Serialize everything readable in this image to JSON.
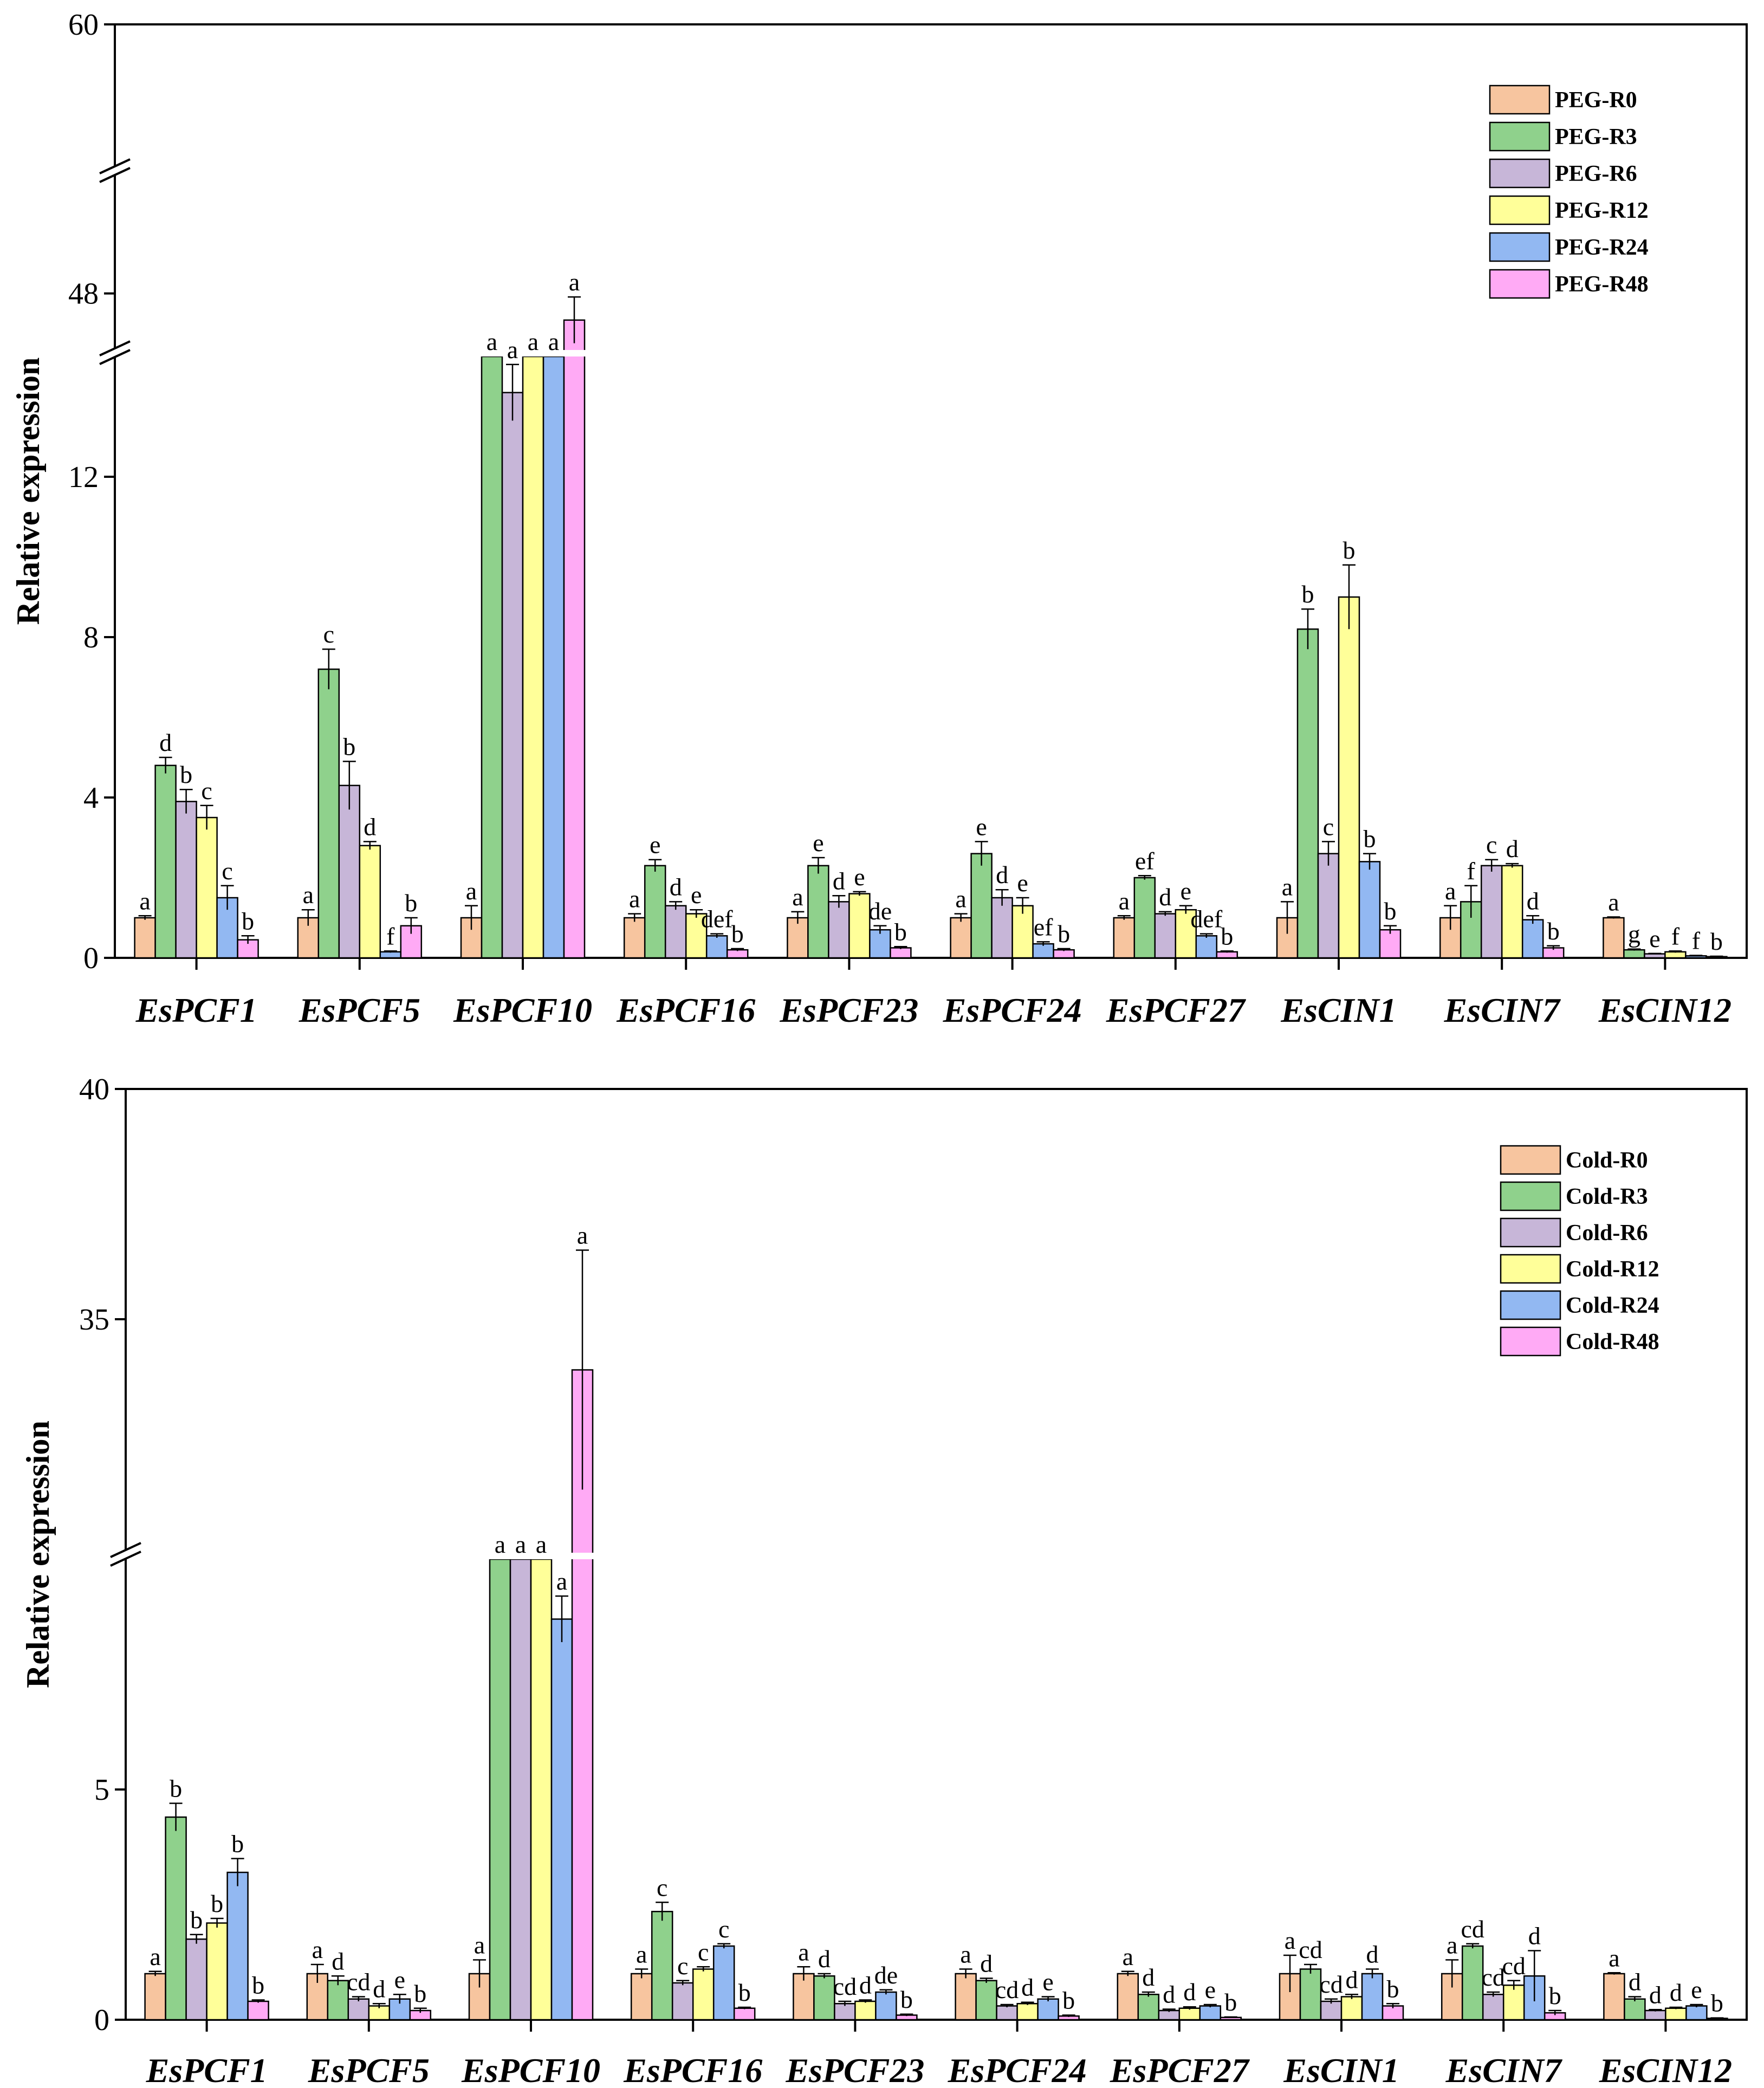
{
  "chart_data": [
    {
      "type": "bar",
      "ylabel": "Relative expression",
      "ylim": [
        0,
        60
      ],
      "axis_break": {
        "segments": [
          [
            0,
            15
          ],
          [
            45,
            50
          ],
          [
            57,
            60
          ]
        ]
      },
      "yticks": [
        0,
        4,
        8,
        12,
        48,
        60
      ],
      "categories": [
        "EsPCF1",
        "EsPCF5",
        "EsPCF10",
        "EsPCF16",
        "EsPCF23",
        "EsPCF24",
        "EsPCF27",
        "EsCIN1",
        "EsCIN7",
        "EsCIN12"
      ],
      "legend_position": "top-right",
      "series": [
        {
          "name": "PEG-R0",
          "color": "#f7c59f",
          "values": [
            1.0,
            1.0,
            1.0,
            1.0,
            1.0,
            1.0,
            1.0,
            1.0,
            1.0,
            1.0
          ],
          "errors": [
            0.05,
            0.2,
            0.3,
            0.1,
            0.15,
            0.1,
            0.05,
            0.4,
            0.3,
            0.02
          ],
          "labels": [
            "a",
            "a",
            "a",
            "a",
            "a",
            "a",
            "a",
            "a",
            "a",
            "a"
          ]
        },
        {
          "name": "PEG-R3",
          "color": "#8fd18c",
          "values": [
            4.8,
            7.2,
            15,
            2.3,
            2.3,
            2.6,
            2.0,
            8.2,
            1.4,
            0.2
          ],
          "errors": [
            0.2,
            0.5,
            0,
            0.15,
            0.2,
            0.3,
            0.05,
            0.5,
            0.4,
            0.02
          ],
          "labels": [
            "d",
            "c",
            "a",
            "e",
            "e",
            "e",
            "ef",
            "b",
            "f",
            "g"
          ]
        },
        {
          "name": "PEG-R6",
          "color": "#c7b6d8",
          "values": [
            3.9,
            4.3,
            14.1,
            1.3,
            1.4,
            1.5,
            1.1,
            2.6,
            2.3,
            0.1
          ],
          "errors": [
            0.3,
            0.6,
            0.7,
            0.1,
            0.15,
            0.2,
            0.05,
            0.3,
            0.15,
            0.01
          ],
          "labels": [
            "b",
            "b",
            "a",
            "d",
            "d",
            "d",
            "d",
            "c",
            "c",
            "e"
          ]
        },
        {
          "name": "PEG-R12",
          "color": "#ffff99",
          "values": [
            3.5,
            2.8,
            15,
            1.1,
            1.6,
            1.3,
            1.2,
            9.0,
            2.3,
            0.15
          ],
          "errors": [
            0.3,
            0.1,
            0,
            0.1,
            0.05,
            0.2,
            0.1,
            0.8,
            0.05,
            0.02
          ],
          "labels": [
            "c",
            "d",
            "a",
            "e",
            "e",
            "e",
            "e",
            "b",
            "d",
            "f"
          ]
        },
        {
          "name": "PEG-R24",
          "color": "#92b8f2",
          "values": [
            1.5,
            0.15,
            15,
            0.55,
            0.7,
            0.35,
            0.55,
            2.4,
            0.95,
            0.05
          ],
          "errors": [
            0.3,
            0.02,
            0,
            0.05,
            0.1,
            0.05,
            0.05,
            0.2,
            0.1,
            0.01
          ],
          "labels": [
            "c",
            "f",
            "a",
            "def",
            "de",
            "ef",
            "def",
            "b",
            "d",
            "f"
          ]
        },
        {
          "name": "PEG-R48",
          "color": "#ffaaf5",
          "values": [
            0.45,
            0.8,
            46.5,
            0.2,
            0.25,
            0.2,
            0.15,
            0.7,
            0.25,
            0.03
          ],
          "errors": [
            0.1,
            0.2,
            1.3,
            0.03,
            0.03,
            0.03,
            0.02,
            0.1,
            0.05,
            0.01
          ],
          "labels": [
            "b",
            "b",
            "a",
            "b",
            "b",
            "b",
            "b",
            "b",
            "b",
            "b"
          ]
        }
      ]
    },
    {
      "type": "bar",
      "ylabel": "Relative expression",
      "ylim": [
        0,
        40
      ],
      "axis_break": {
        "segments": [
          [
            0,
            10
          ],
          [
            30,
            40
          ]
        ]
      },
      "yticks": [
        0,
        5,
        35,
        40
      ],
      "categories": [
        "EsPCF1",
        "EsPCF5",
        "EsPCF10",
        "EsPCF16",
        "EsPCF23",
        "EsPCF24",
        "EsPCF27",
        "EsCIN1",
        "EsCIN7",
        "EsCIN12"
      ],
      "legend_position": "top-right",
      "series": [
        {
          "name": "Cold-R0",
          "color": "#f7c59f",
          "values": [
            1.0,
            1.0,
            1.0,
            1.0,
            1.0,
            1.0,
            1.0,
            1.0,
            1.0,
            1.0
          ],
          "errors": [
            0.05,
            0.2,
            0.3,
            0.1,
            0.15,
            0.1,
            0.05,
            0.4,
            0.3,
            0.02
          ],
          "labels": [
            "a",
            "a",
            "a",
            "a",
            "a",
            "a",
            "a",
            "a",
            "a",
            "a"
          ]
        },
        {
          "name": "Cold-R3",
          "color": "#8fd18c",
          "values": [
            4.4,
            0.85,
            10,
            2.35,
            0.95,
            0.85,
            0.55,
            1.1,
            1.6,
            0.45
          ],
          "errors": [
            0.3,
            0.1,
            0,
            0.2,
            0.05,
            0.05,
            0.05,
            0.1,
            0.05,
            0.05
          ],
          "labels": [
            "b",
            "d",
            "a",
            "c",
            "d",
            "d",
            "d",
            "cd",
            "cd",
            "d"
          ]
        },
        {
          "name": "Cold-R6",
          "color": "#c7b6d8",
          "values": [
            1.75,
            0.45,
            10,
            0.8,
            0.35,
            0.3,
            0.2,
            0.4,
            0.55,
            0.2
          ],
          "errors": [
            0.1,
            0.05,
            0,
            0.05,
            0.05,
            0.03,
            0.03,
            0.05,
            0.05,
            0.02
          ],
          "labels": [
            "b",
            "cd",
            "a",
            "c",
            "cd",
            "cd",
            "d",
            "cd",
            "cd",
            "d"
          ]
        },
        {
          "name": "Cold-R12",
          "color": "#ffff99",
          "values": [
            2.1,
            0.3,
            10,
            1.1,
            0.4,
            0.35,
            0.25,
            0.5,
            0.75,
            0.25
          ],
          "errors": [
            0.1,
            0.05,
            0,
            0.05,
            0.03,
            0.03,
            0.03,
            0.05,
            0.1,
            0.02
          ],
          "labels": [
            "b",
            "d",
            "a",
            "c",
            "d",
            "d",
            "d",
            "d",
            "cd",
            "d"
          ]
        },
        {
          "name": "Cold-R24",
          "color": "#92b8f2",
          "values": [
            3.2,
            0.45,
            8.7,
            1.6,
            0.6,
            0.45,
            0.3,
            1.0,
            0.95,
            0.3
          ],
          "errors": [
            0.3,
            0.1,
            0.5,
            0.05,
            0.05,
            0.05,
            0.03,
            0.1,
            0.55,
            0.03
          ],
          "labels": [
            "b",
            "e",
            "a",
            "c",
            "de",
            "e",
            "e",
            "d",
            "d",
            "e"
          ]
        },
        {
          "name": "Cold-R48",
          "color": "#ffaaf5",
          "values": [
            0.4,
            0.2,
            33.9,
            0.25,
            0.1,
            0.08,
            0.05,
            0.3,
            0.15,
            0.03
          ],
          "errors": [
            0.03,
            0.05,
            2.6,
            0.02,
            0.02,
            0.02,
            0.01,
            0.05,
            0.05,
            0.01
          ],
          "labels": [
            "b",
            "b",
            "a",
            "b",
            "b",
            "b",
            "b",
            "b",
            "b",
            "b"
          ]
        }
      ]
    }
  ]
}
